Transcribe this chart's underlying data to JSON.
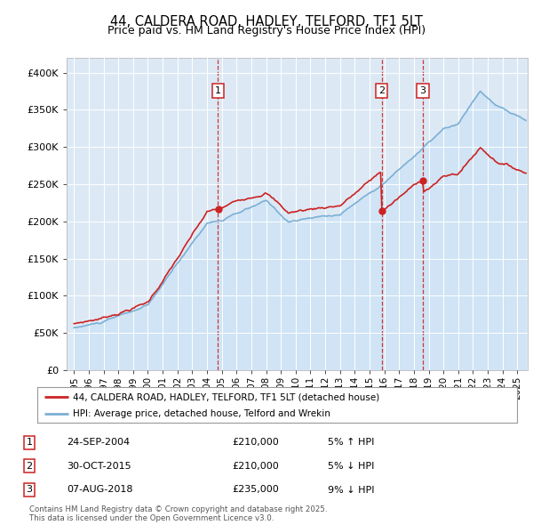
{
  "title": "44, CALDERA ROAD, HADLEY, TELFORD, TF1 5LT",
  "subtitle": "Price paid vs. HM Land Registry's House Price Index (HPI)",
  "legend_line1": "44, CALDERA ROAD, HADLEY, TELFORD, TF1 5LT (detached house)",
  "legend_line2": "HPI: Average price, detached house, Telford and Wrekin",
  "transactions": [
    {
      "label": "1",
      "date": "24-SEP-2004",
      "price": 210000,
      "pct": "5%",
      "dir": "↑",
      "x_year": 2004.73
    },
    {
      "label": "2",
      "date": "30-OCT-2015",
      "price": 210000,
      "pct": "5%",
      "dir": "↓",
      "x_year": 2015.83
    },
    {
      "label": "3",
      "date": "07-AUG-2018",
      "price": 235000,
      "pct": "9%",
      "dir": "↓",
      "x_year": 2018.6
    }
  ],
  "footnote": "Contains HM Land Registry data © Crown copyright and database right 2025.\nThis data is licensed under the Open Government Licence v3.0.",
  "hpi_fill_color": "#d0e4f5",
  "hpi_line_color": "#7bafd4",
  "price_color": "#cc2222",
  "background_color": "#dce9f5",
  "ylim": [
    0,
    420000
  ],
  "yticks": [
    0,
    50000,
    100000,
    150000,
    200000,
    250000,
    300000,
    350000,
    400000
  ],
  "xlim_start": 1994.5,
  "xlim_end": 2025.7
}
